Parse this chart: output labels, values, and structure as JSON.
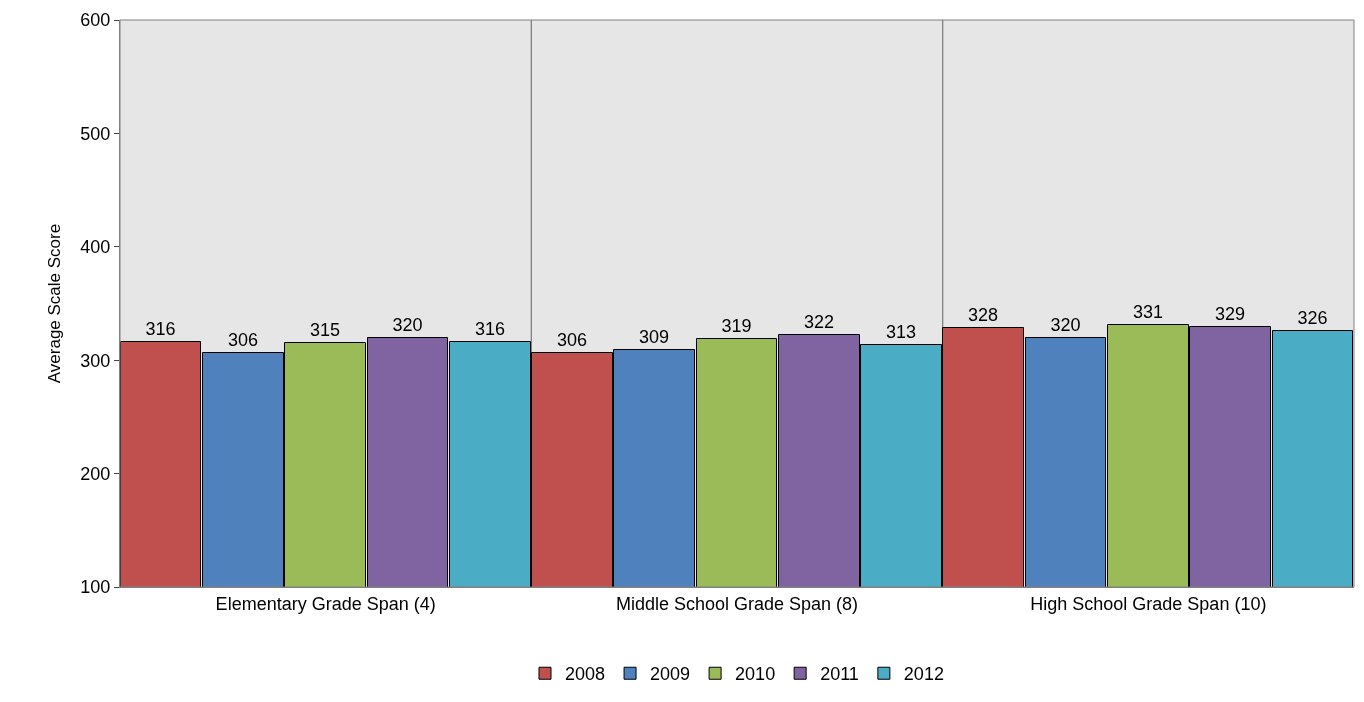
{
  "chart_data": {
    "type": "bar",
    "ylabel": "Average Scale Score",
    "categories": [
      "Elementary Grade Span (4)",
      "Middle School Grade Span (8)",
      "High School Grade Span (10)"
    ],
    "series": [
      {
        "name": "2008",
        "color": "#c0504d",
        "values": [
          316,
          306,
          328
        ]
      },
      {
        "name": "2009",
        "color": "#4f81bd",
        "values": [
          306,
          309,
          320
        ]
      },
      {
        "name": "2010",
        "color": "#9bbb59",
        "values": [
          315,
          319,
          331
        ]
      },
      {
        "name": "2011",
        "color": "#8064a2",
        "values": [
          320,
          322,
          329
        ]
      },
      {
        "name": "2012",
        "color": "#4bacc6",
        "values": [
          316,
          313,
          326
        ]
      }
    ],
    "ylim": [
      100,
      600
    ],
    "yticks": [
      100,
      200,
      300,
      400,
      500,
      600
    ],
    "grid": "x",
    "legend": "bottom",
    "data_labels": true
  }
}
